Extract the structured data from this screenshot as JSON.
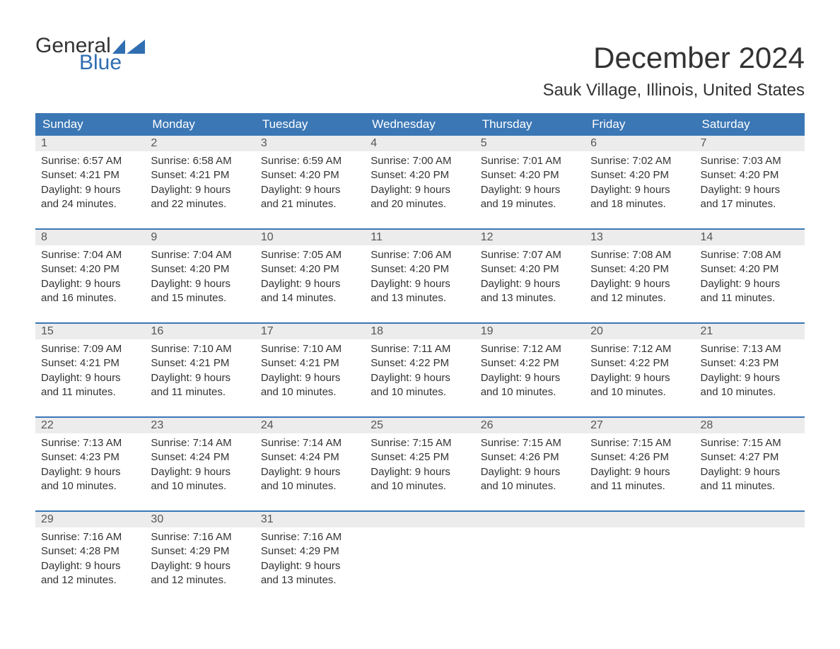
{
  "brand": {
    "line1": "General",
    "line2": "Blue",
    "accent_color": "#2f6eb0"
  },
  "title": "December 2024",
  "location": "Sauk Village, Illinois, United States",
  "header_bg": "#3b77b5",
  "header_fg": "#ffffff",
  "daynum_bg": "#ececec",
  "day_names": [
    "Sunday",
    "Monday",
    "Tuesday",
    "Wednesday",
    "Thursday",
    "Friday",
    "Saturday"
  ],
  "weeks": [
    [
      {
        "n": "1",
        "sr": "6:57 AM",
        "ss": "4:21 PM",
        "dl1": "Daylight: 9 hours",
        "dl2": "and 24 minutes."
      },
      {
        "n": "2",
        "sr": "6:58 AM",
        "ss": "4:21 PM",
        "dl1": "Daylight: 9 hours",
        "dl2": "and 22 minutes."
      },
      {
        "n": "3",
        "sr": "6:59 AM",
        "ss": "4:20 PM",
        "dl1": "Daylight: 9 hours",
        "dl2": "and 21 minutes."
      },
      {
        "n": "4",
        "sr": "7:00 AM",
        "ss": "4:20 PM",
        "dl1": "Daylight: 9 hours",
        "dl2": "and 20 minutes."
      },
      {
        "n": "5",
        "sr": "7:01 AM",
        "ss": "4:20 PM",
        "dl1": "Daylight: 9 hours",
        "dl2": "and 19 minutes."
      },
      {
        "n": "6",
        "sr": "7:02 AM",
        "ss": "4:20 PM",
        "dl1": "Daylight: 9 hours",
        "dl2": "and 18 minutes."
      },
      {
        "n": "7",
        "sr": "7:03 AM",
        "ss": "4:20 PM",
        "dl1": "Daylight: 9 hours",
        "dl2": "and 17 minutes."
      }
    ],
    [
      {
        "n": "8",
        "sr": "7:04 AM",
        "ss": "4:20 PM",
        "dl1": "Daylight: 9 hours",
        "dl2": "and 16 minutes."
      },
      {
        "n": "9",
        "sr": "7:04 AM",
        "ss": "4:20 PM",
        "dl1": "Daylight: 9 hours",
        "dl2": "and 15 minutes."
      },
      {
        "n": "10",
        "sr": "7:05 AM",
        "ss": "4:20 PM",
        "dl1": "Daylight: 9 hours",
        "dl2": "and 14 minutes."
      },
      {
        "n": "11",
        "sr": "7:06 AM",
        "ss": "4:20 PM",
        "dl1": "Daylight: 9 hours",
        "dl2": "and 13 minutes."
      },
      {
        "n": "12",
        "sr": "7:07 AM",
        "ss": "4:20 PM",
        "dl1": "Daylight: 9 hours",
        "dl2": "and 13 minutes."
      },
      {
        "n": "13",
        "sr": "7:08 AM",
        "ss": "4:20 PM",
        "dl1": "Daylight: 9 hours",
        "dl2": "and 12 minutes."
      },
      {
        "n": "14",
        "sr": "7:08 AM",
        "ss": "4:20 PM",
        "dl1": "Daylight: 9 hours",
        "dl2": "and 11 minutes."
      }
    ],
    [
      {
        "n": "15",
        "sr": "7:09 AM",
        "ss": "4:21 PM",
        "dl1": "Daylight: 9 hours",
        "dl2": "and 11 minutes."
      },
      {
        "n": "16",
        "sr": "7:10 AM",
        "ss": "4:21 PM",
        "dl1": "Daylight: 9 hours",
        "dl2": "and 11 minutes."
      },
      {
        "n": "17",
        "sr": "7:10 AM",
        "ss": "4:21 PM",
        "dl1": "Daylight: 9 hours",
        "dl2": "and 10 minutes."
      },
      {
        "n": "18",
        "sr": "7:11 AM",
        "ss": "4:22 PM",
        "dl1": "Daylight: 9 hours",
        "dl2": "and 10 minutes."
      },
      {
        "n": "19",
        "sr": "7:12 AM",
        "ss": "4:22 PM",
        "dl1": "Daylight: 9 hours",
        "dl2": "and 10 minutes."
      },
      {
        "n": "20",
        "sr": "7:12 AM",
        "ss": "4:22 PM",
        "dl1": "Daylight: 9 hours",
        "dl2": "and 10 minutes."
      },
      {
        "n": "21",
        "sr": "7:13 AM",
        "ss": "4:23 PM",
        "dl1": "Daylight: 9 hours",
        "dl2": "and 10 minutes."
      }
    ],
    [
      {
        "n": "22",
        "sr": "7:13 AM",
        "ss": "4:23 PM",
        "dl1": "Daylight: 9 hours",
        "dl2": "and 10 minutes."
      },
      {
        "n": "23",
        "sr": "7:14 AM",
        "ss": "4:24 PM",
        "dl1": "Daylight: 9 hours",
        "dl2": "and 10 minutes."
      },
      {
        "n": "24",
        "sr": "7:14 AM",
        "ss": "4:24 PM",
        "dl1": "Daylight: 9 hours",
        "dl2": "and 10 minutes."
      },
      {
        "n": "25",
        "sr": "7:15 AM",
        "ss": "4:25 PM",
        "dl1": "Daylight: 9 hours",
        "dl2": "and 10 minutes."
      },
      {
        "n": "26",
        "sr": "7:15 AM",
        "ss": "4:26 PM",
        "dl1": "Daylight: 9 hours",
        "dl2": "and 10 minutes."
      },
      {
        "n": "27",
        "sr": "7:15 AM",
        "ss": "4:26 PM",
        "dl1": "Daylight: 9 hours",
        "dl2": "and 11 minutes."
      },
      {
        "n": "28",
        "sr": "7:15 AM",
        "ss": "4:27 PM",
        "dl1": "Daylight: 9 hours",
        "dl2": "and 11 minutes."
      }
    ],
    [
      {
        "n": "29",
        "sr": "7:16 AM",
        "ss": "4:28 PM",
        "dl1": "Daylight: 9 hours",
        "dl2": "and 12 minutes."
      },
      {
        "n": "30",
        "sr": "7:16 AM",
        "ss": "4:29 PM",
        "dl1": "Daylight: 9 hours",
        "dl2": "and 12 minutes."
      },
      {
        "n": "31",
        "sr": "7:16 AM",
        "ss": "4:29 PM",
        "dl1": "Daylight: 9 hours",
        "dl2": "and 13 minutes."
      },
      null,
      null,
      null,
      null
    ]
  ],
  "labels": {
    "sunrise_prefix": "Sunrise: ",
    "sunset_prefix": "Sunset: "
  }
}
